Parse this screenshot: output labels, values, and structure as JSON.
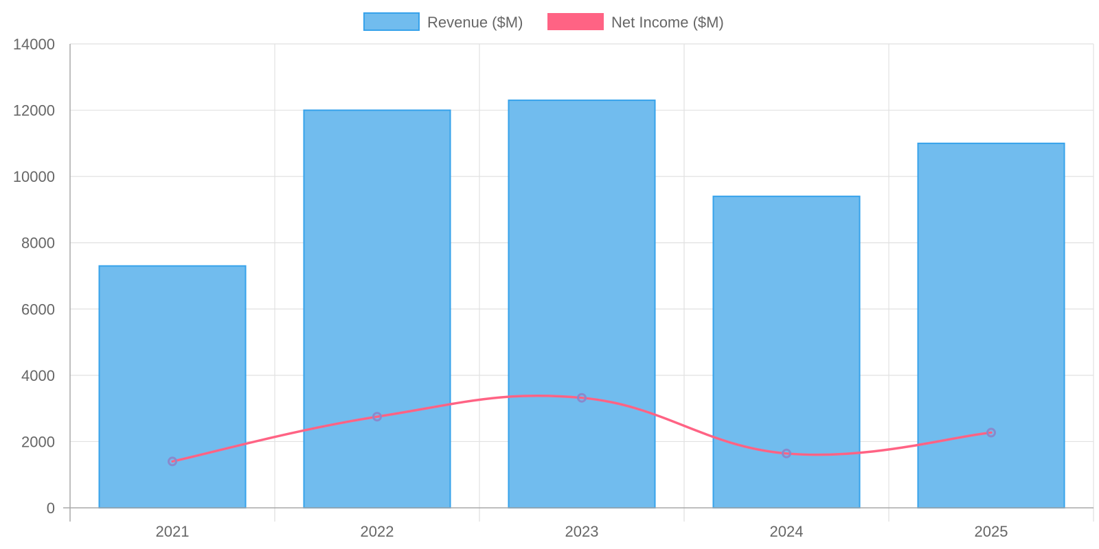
{
  "chart_data": {
    "type": "bar",
    "categories": [
      "2021",
      "2022",
      "2023",
      "2024",
      "2025"
    ],
    "series": [
      {
        "name": "Revenue ($M)",
        "type": "bar",
        "values": [
          7300,
          12000,
          12300,
          9400,
          11000
        ],
        "color": "#36a2eb",
        "fill": "#71bcee"
      },
      {
        "name": "Net Income ($M)",
        "type": "line",
        "values": [
          1400,
          2750,
          3320,
          1640,
          2270
        ],
        "color": "#ff6384",
        "point_color": "#8a89cc"
      }
    ],
    "ylim": [
      0,
      14000
    ],
    "yticks": [
      "0",
      "2000",
      "4000",
      "6000",
      "8000",
      "10000",
      "12000",
      "14000"
    ],
    "grid": true,
    "legend": "top-center"
  }
}
